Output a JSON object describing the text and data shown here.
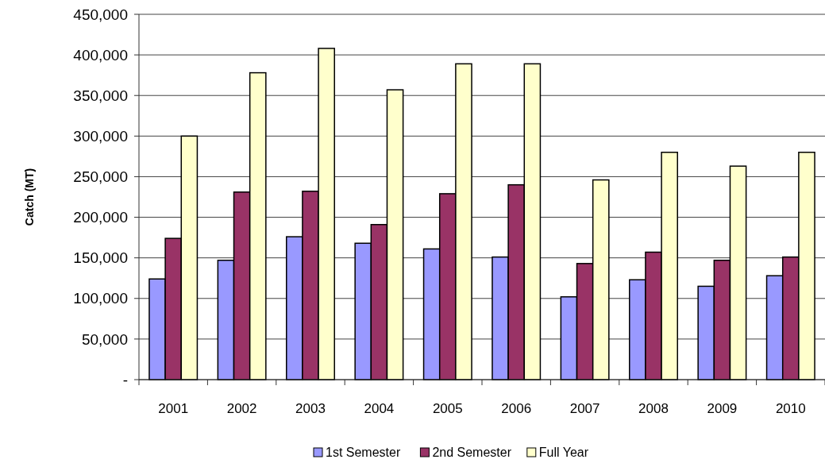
{
  "chart_data": {
    "type": "bar",
    "ylabel": "Catch (MT)",
    "categories": [
      "2001",
      "2002",
      "2003",
      "2004",
      "2005",
      "2006",
      "2007",
      "2008",
      "2009",
      "2010"
    ],
    "series": [
      {
        "name": "1st Semester",
        "color": "#9999ff",
        "values": [
          124000,
          147000,
          176000,
          168000,
          161000,
          151000,
          102000,
          123000,
          115000,
          128000
        ]
      },
      {
        "name": "2nd Semester",
        "color": "#993366",
        "values": [
          174000,
          231000,
          232000,
          191000,
          229000,
          240000,
          143000,
          157000,
          147000,
          151000
        ]
      },
      {
        "name": "Full Year",
        "color": "#ffffcc",
        "values": [
          300000,
          378000,
          408000,
          357000,
          389000,
          389000,
          246000,
          280000,
          263000,
          280000
        ]
      }
    ],
    "ylim": [
      0,
      450000
    ],
    "yticks": [
      {
        "value": 0,
        "label": "-"
      },
      {
        "value": 50000,
        "label": "50,000"
      },
      {
        "value": 100000,
        "label": "100,000"
      },
      {
        "value": 150000,
        "label": "150,000"
      },
      {
        "value": 200000,
        "label": "200,000"
      },
      {
        "value": 250000,
        "label": "250,000"
      },
      {
        "value": 300000,
        "label": "300,000"
      },
      {
        "value": 350000,
        "label": "350,000"
      },
      {
        "value": 400000,
        "label": "400,000"
      },
      {
        "value": 450000,
        "label": "450,000"
      }
    ],
    "grid": "y",
    "legend": "bottom"
  }
}
